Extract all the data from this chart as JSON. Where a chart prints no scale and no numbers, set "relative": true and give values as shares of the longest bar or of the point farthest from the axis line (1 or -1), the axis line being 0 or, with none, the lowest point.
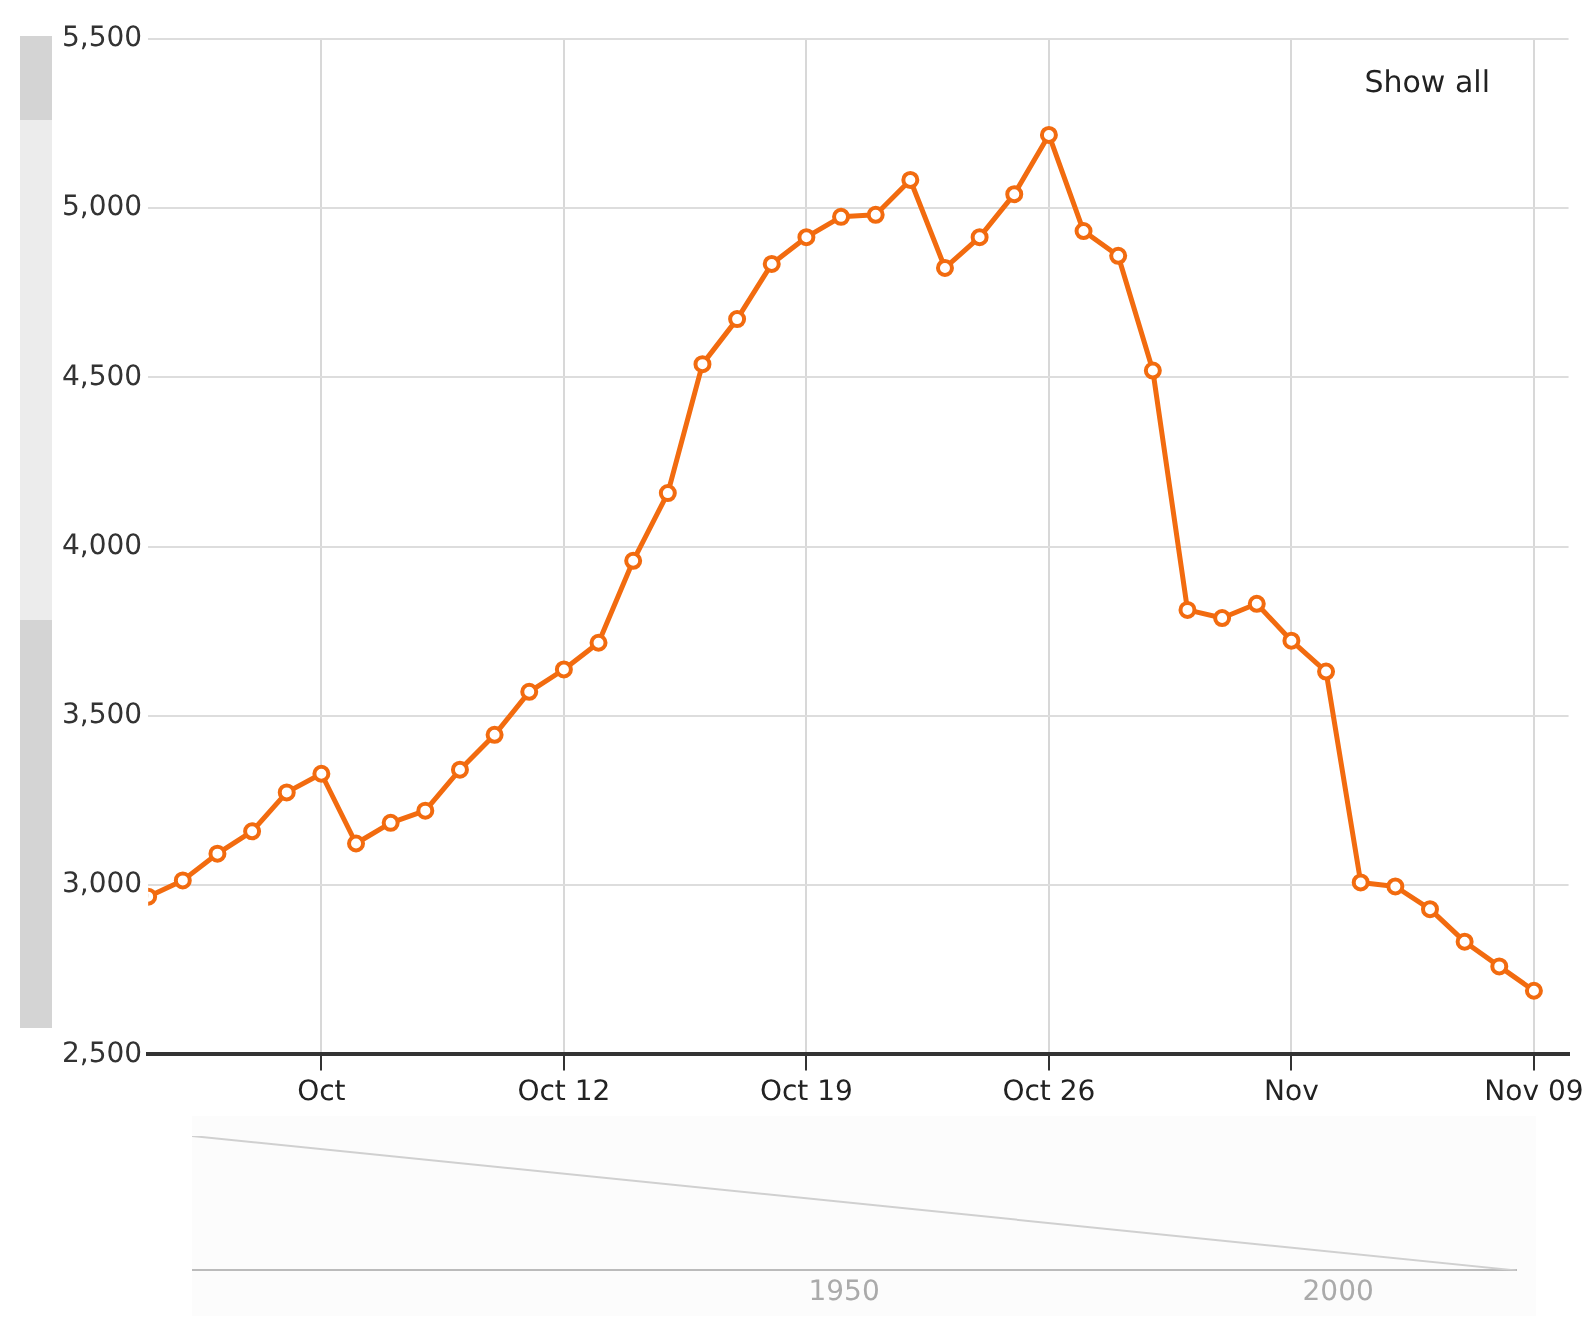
{
  "chart_data": [
    {
      "type": "line",
      "color": "#f26b0f",
      "marker": "circle",
      "grid": true,
      "legend": false,
      "x": [
        "--09-30",
        "--10-01",
        "--10-02",
        "--10-03",
        "--10-04",
        "--10-05",
        "--10-06",
        "--10-07",
        "--10-08",
        "--10-09",
        "--10-10",
        "--10-11",
        "--10-12",
        "--10-13",
        "--10-14",
        "--10-15",
        "--10-16",
        "--10-17",
        "--10-18",
        "--10-19",
        "--10-20",
        "--10-21",
        "--10-22",
        "--10-23",
        "--10-24",
        "--10-25",
        "--10-26",
        "--10-27",
        "--10-28",
        "--10-29",
        "--10-30",
        "--10-31",
        "--11-01",
        "--11-02",
        "--11-03",
        "--11-04",
        "--11-05",
        "--11-06",
        "--11-07",
        "--11-08",
        "--11-09"
      ],
      "values": [
        2966,
        3014,
        3093,
        3159,
        3274,
        3329,
        3123,
        3184,
        3220,
        3341,
        3444,
        3571,
        3637,
        3716,
        3958,
        4158,
        4539,
        4672,
        4835,
        4914,
        4974,
        4980,
        5083,
        4823,
        4914,
        5041,
        5216,
        4932,
        4859,
        4520,
        3813,
        3789,
        3831,
        3722,
        3631,
        3008,
        2996,
        2929,
        2833,
        2760,
        2688
      ],
      "xlim": [
        "--09-30",
        "--11-10"
      ],
      "xticks": [
        {
          "value": "--10-05",
          "label": "Oct"
        },
        {
          "value": "--10-12",
          "label": "Oct 12"
        },
        {
          "value": "--10-19",
          "label": "Oct 19"
        },
        {
          "value": "--10-26",
          "label": "Oct 26"
        },
        {
          "value": "--11-02",
          "label": "Nov"
        },
        {
          "value": "--11-09",
          "label": "Nov 09"
        }
      ],
      "ylim": [
        2500,
        5500
      ],
      "yticks": [
        {
          "value": 2500,
          "label": "2,500"
        },
        {
          "value": 3000,
          "label": "3,000"
        },
        {
          "value": 3500,
          "label": "3,500"
        },
        {
          "value": 4000,
          "label": "4,000"
        },
        {
          "value": 4500,
          "label": "4,500"
        },
        {
          "value": 5000,
          "label": "5,000"
        },
        {
          "value": 5500,
          "label": "5,500"
        }
      ],
      "annotations": [
        "Show all"
      ]
    },
    {
      "type": "line",
      "color": "#d0d0d0",
      "relative": true,
      "grid": false,
      "legend": false,
      "marker": "none",
      "tick_labels": "x",
      "x": [
        1884,
        2018
      ],
      "values": [
        1,
        0
      ],
      "xlim": [
        1884,
        2018
      ],
      "xticks": [
        1950,
        2000
      ]
    }
  ]
}
